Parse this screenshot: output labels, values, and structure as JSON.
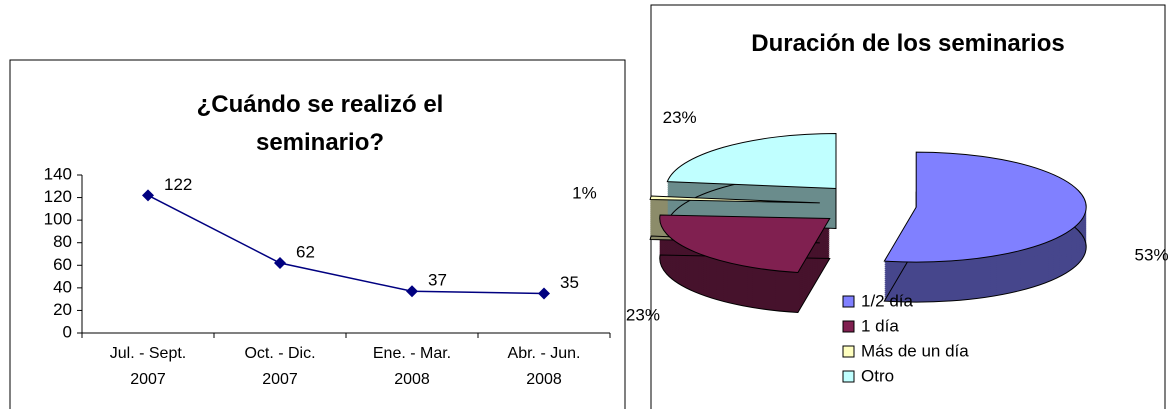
{
  "chart_data": [
    {
      "type": "line",
      "title": "¿Cuándo se realizó el seminario?",
      "categories": [
        "Jul. - Sept. 2007",
        "Oct. - Dic. 2007",
        "Ene. - Mar. 2008",
        "Abr. - Jun. 2008"
      ],
      "values": [
        122,
        62,
        37,
        35
      ],
      "color": "#000080",
      "ylim": [
        0,
        140
      ],
      "yticks": [
        0,
        20,
        40,
        60,
        80,
        100,
        120,
        140
      ],
      "grid": false
    },
    {
      "type": "pie",
      "title": "Duración de los seminarios",
      "categories": [
        "1/2 día",
        "1 día",
        "Más de un día",
        "Otro"
      ],
      "values": [
        53,
        23,
        1,
        23
      ],
      "value_labels": [
        "53%",
        "23%",
        "1%",
        "23%"
      ],
      "colors": [
        "#8080ff",
        "#802050",
        "#ffffc0",
        "#c0ffff"
      ]
    }
  ]
}
